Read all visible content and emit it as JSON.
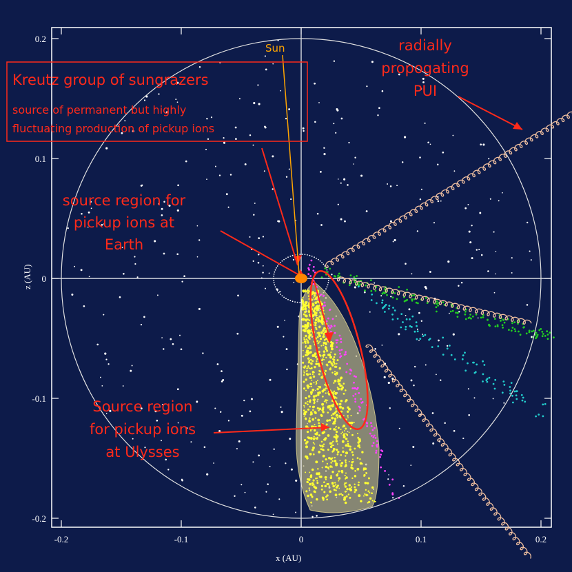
{
  "chart_data": {
    "type": "scatter",
    "title": "",
    "xlabel": "x (AU)",
    "ylabel": "z (AU)",
    "xlim": [
      -0.21,
      0.21
    ],
    "ylim": [
      -0.21,
      0.21
    ],
    "x_ticks": [
      -0.2,
      -0.1,
      0,
      0.1,
      0.2
    ],
    "y_ticks": [
      0.2,
      0.1,
      0,
      -0.1,
      -0.2
    ],
    "x_tick_labels": [
      "-0.2",
      "-0.1",
      "0",
      "0.1",
      "0.2"
    ],
    "y_tick_labels": [
      "0.2",
      "0.1",
      "0",
      "-0.1",
      "-0.2"
    ],
    "reference_circle_radius_au": 0.2,
    "sun": {
      "x": 0.0,
      "z": 0.0,
      "label": "Sun"
    },
    "annotations": {
      "kreutz_title": "Kreutz group of sungrazers",
      "kreutz_line1": "source of permanent but highly",
      "kreutz_line2": "fluctuating production of pickup ions",
      "earth_line1": "source region for",
      "earth_line2": "pickup ions at",
      "earth_line3": "Earth",
      "ulysses_line1": "Source region",
      "ulysses_line2": "for pickup ions",
      "ulysses_line3": "at Ulysses",
      "pui_line1": "radially",
      "pui_line2": "propogating",
      "pui_line3": "PUI"
    },
    "pui_trajectories": [
      {
        "x0": 0.02,
        "z0": 0.01,
        "x1": 0.23,
        "z1": 0.14
      },
      {
        "x0": 0.03,
        "z0": 0.0,
        "x1": 0.19,
        "z1": -0.037
      },
      {
        "x0": 0.055,
        "z0": -0.055,
        "x1": 0.19,
        "z1": -0.232
      }
    ],
    "colors": {
      "background": "#0d1b4a",
      "axes": "#ffffff",
      "annotation": "#ff2a1a",
      "sun": "#ffa500",
      "source_region_fill": "#c8c088",
      "source_region_points": "#ffff33",
      "trajectory": "#f0c0a0",
      "green_points": "#22cc22",
      "cyan_points": "#22cccc",
      "magenta_points": "#ff44ff"
    }
  }
}
